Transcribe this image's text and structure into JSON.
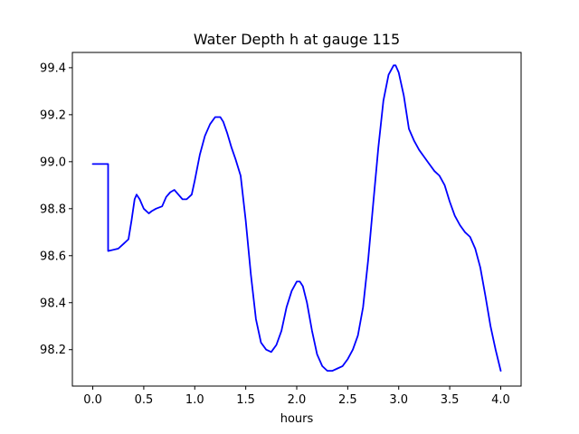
{
  "chart_data": {
    "type": "line",
    "title": "Water Depth h at gauge 115",
    "xlabel": "hours",
    "ylabel": "",
    "xlim": [
      -0.2,
      4.2
    ],
    "ylim": [
      98.045,
      99.465
    ],
    "xticks": [
      0.0,
      0.5,
      1.0,
      1.5,
      2.0,
      2.5,
      3.0,
      3.5,
      4.0
    ],
    "xtick_labels": [
      "0.0",
      "0.5",
      "1.0",
      "1.5",
      "2.0",
      "2.5",
      "3.0",
      "3.5",
      "4.0"
    ],
    "yticks": [
      98.2,
      98.4,
      98.6,
      98.8,
      99.0,
      99.2,
      99.4
    ],
    "ytick_labels": [
      "98.2",
      "98.4",
      "98.6",
      "98.8",
      "99.0",
      "99.2",
      "99.4"
    ],
    "grid": false,
    "series": [
      {
        "name": "",
        "color": "#0000ff",
        "x": [
          0.0,
          0.15,
          0.15,
          0.25,
          0.3,
          0.35,
          0.38,
          0.41,
          0.43,
          0.46,
          0.5,
          0.55,
          0.58,
          0.62,
          0.68,
          0.72,
          0.76,
          0.8,
          0.84,
          0.88,
          0.92,
          0.97,
          1.0,
          1.05,
          1.1,
          1.15,
          1.2,
          1.25,
          1.28,
          1.32,
          1.36,
          1.4,
          1.45,
          1.5,
          1.55,
          1.6,
          1.65,
          1.7,
          1.75,
          1.8,
          1.85,
          1.9,
          1.95,
          2.0,
          2.03,
          2.06,
          2.1,
          2.15,
          2.2,
          2.25,
          2.3,
          2.35,
          2.4,
          2.45,
          2.5,
          2.55,
          2.6,
          2.65,
          2.7,
          2.75,
          2.8,
          2.85,
          2.9,
          2.95,
          2.97,
          3.0,
          3.05,
          3.1,
          3.15,
          3.2,
          3.25,
          3.3,
          3.35,
          3.4,
          3.45,
          3.5,
          3.55,
          3.6,
          3.65,
          3.7,
          3.75,
          3.8,
          3.85,
          3.9,
          3.95,
          4.0
        ],
        "y": [
          98.99,
          98.99,
          98.62,
          98.63,
          98.65,
          98.67,
          98.75,
          98.84,
          98.86,
          98.84,
          98.8,
          98.78,
          98.79,
          98.8,
          98.81,
          98.85,
          98.87,
          98.88,
          98.86,
          98.84,
          98.84,
          98.86,
          98.92,
          99.03,
          99.11,
          99.16,
          99.19,
          99.19,
          99.17,
          99.12,
          99.06,
          99.01,
          98.94,
          98.75,
          98.52,
          98.33,
          98.23,
          98.2,
          98.19,
          98.22,
          98.28,
          98.38,
          98.45,
          98.49,
          98.49,
          98.47,
          98.4,
          98.28,
          98.18,
          98.13,
          98.11,
          98.11,
          98.12,
          98.13,
          98.16,
          98.2,
          98.26,
          98.38,
          98.58,
          98.82,
          99.06,
          99.26,
          99.37,
          99.41,
          99.41,
          99.38,
          99.28,
          99.14,
          99.09,
          99.05,
          99.02,
          98.99,
          98.96,
          98.94,
          98.9,
          98.83,
          98.77,
          98.73,
          98.7,
          98.68,
          98.63,
          98.55,
          98.43,
          98.3,
          98.2,
          98.11
        ]
      }
    ]
  }
}
